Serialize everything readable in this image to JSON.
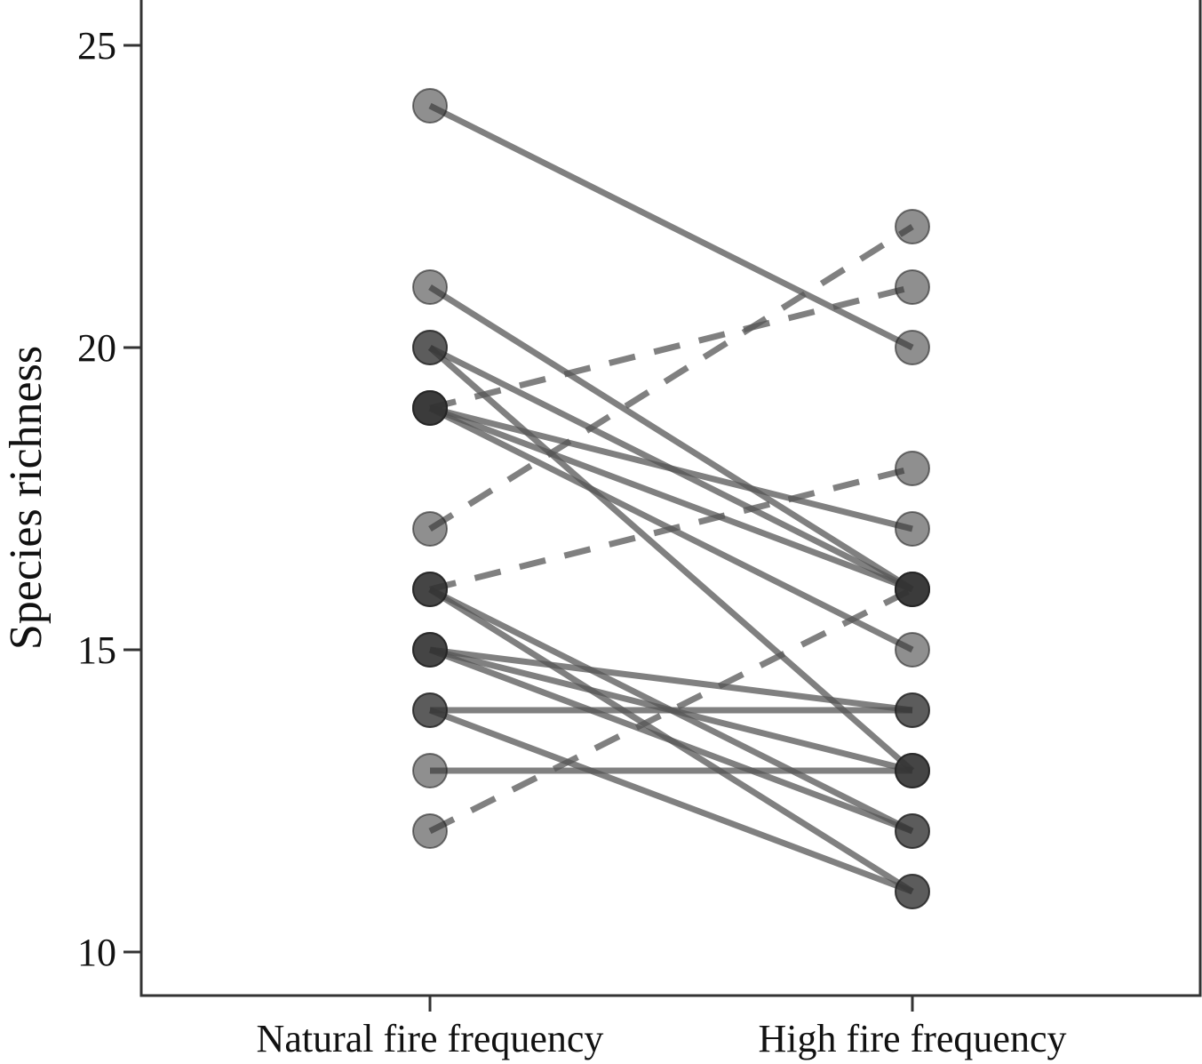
{
  "chart_data": {
    "type": "line",
    "title": "",
    "xlabel": "",
    "ylabel": "Species richness",
    "categories": [
      "Natural fire frequency",
      "High fire frequency"
    ],
    "ylim": [
      9.3,
      25.8
    ],
    "yticks": [
      10,
      15,
      20,
      25
    ],
    "grid": false,
    "legend": "none",
    "series": [
      {
        "values": [
          24,
          20
        ],
        "linestyle": "solid"
      },
      {
        "values": [
          21,
          16
        ],
        "linestyle": "solid"
      },
      {
        "values": [
          20,
          16
        ],
        "linestyle": "solid"
      },
      {
        "values": [
          20,
          13
        ],
        "linestyle": "solid"
      },
      {
        "values": [
          19,
          21
        ],
        "linestyle": "dashed"
      },
      {
        "values": [
          19,
          17
        ],
        "linestyle": "solid"
      },
      {
        "values": [
          19,
          16
        ],
        "linestyle": "solid"
      },
      {
        "values": [
          19,
          15
        ],
        "linestyle": "solid"
      },
      {
        "values": [
          17,
          22
        ],
        "linestyle": "dashed"
      },
      {
        "values": [
          16,
          18
        ],
        "linestyle": "dashed"
      },
      {
        "values": [
          16,
          12
        ],
        "linestyle": "solid"
      },
      {
        "values": [
          16,
          11
        ],
        "linestyle": "solid"
      },
      {
        "values": [
          15,
          14
        ],
        "linestyle": "solid"
      },
      {
        "values": [
          15,
          13
        ],
        "linestyle": "solid"
      },
      {
        "values": [
          15,
          12
        ],
        "linestyle": "solid"
      },
      {
        "values": [
          14,
          14
        ],
        "linestyle": "solid"
      },
      {
        "values": [
          14,
          11
        ],
        "linestyle": "solid"
      },
      {
        "values": [
          13,
          13
        ],
        "linestyle": "solid"
      },
      {
        "values": [
          12,
          16
        ],
        "linestyle": "dashed"
      }
    ],
    "colors": {
      "line": "#555555",
      "point": "#333333",
      "axis": "#333333"
    }
  }
}
